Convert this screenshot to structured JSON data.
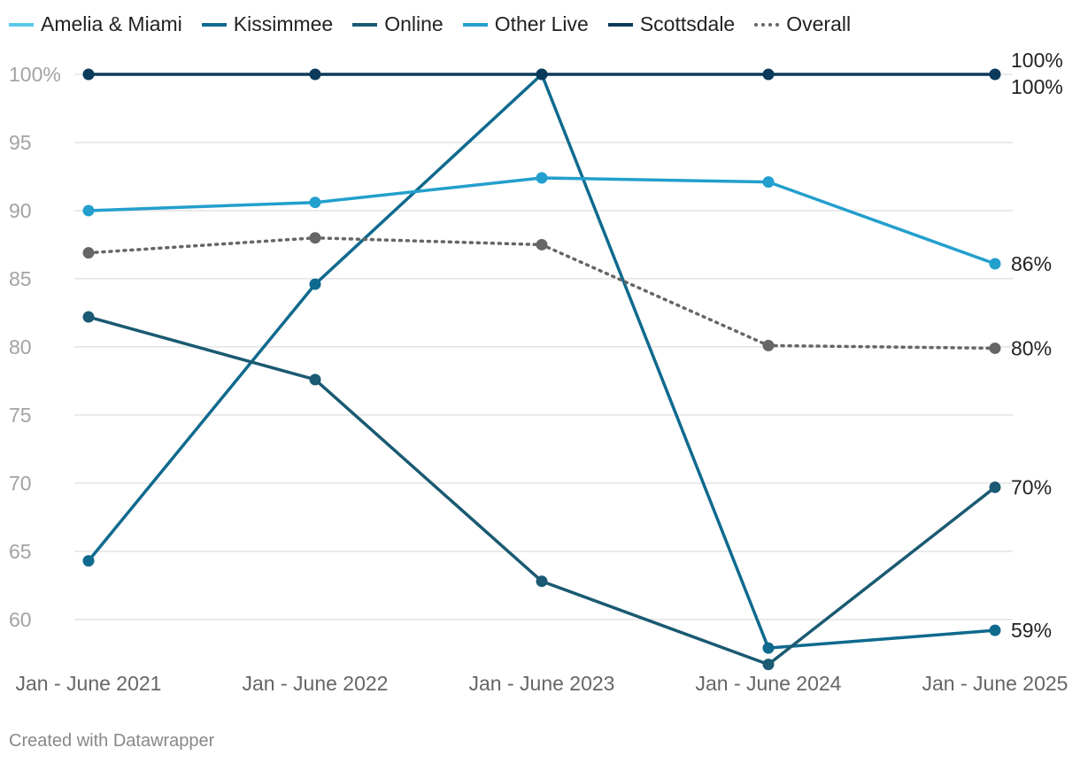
{
  "footer": {
    "credit": "Created with Datawrapper"
  },
  "chart_data": {
    "type": "line",
    "categories": [
      "Jan - June 2021",
      "Jan - June 2022",
      "Jan - June 2023",
      "Jan - June 2024",
      "Jan - June 2025"
    ],
    "ylim": [
      57,
      100
    ],
    "yticks": [
      60,
      65,
      70,
      75,
      80,
      85,
      90,
      95,
      100
    ],
    "ytick_labels": [
      "60",
      "65",
      "70",
      "75",
      "80",
      "85",
      "90",
      "95",
      "100%"
    ],
    "grid": true,
    "legend_position": "top-left",
    "series": [
      {
        "name": "Amelia & Miami",
        "color": "#5bc8ec",
        "style": "solid",
        "values": [
          null,
          null,
          null,
          null,
          null
        ],
        "end_label": ""
      },
      {
        "name": "Kissimmee",
        "color": "#0f6a8e",
        "style": "solid",
        "values": [
          64.3,
          84.6,
          100,
          57.9,
          59.2
        ],
        "end_label": "59%"
      },
      {
        "name": "Online",
        "color": "#1a5a72",
        "style": "solid",
        "values": [
          82.2,
          77.6,
          62.8,
          56.7,
          69.7
        ],
        "end_label": "70%"
      },
      {
        "name": "Other Live",
        "color": "#239fcd",
        "style": "solid",
        "values": [
          90.0,
          90.6,
          92.4,
          92.1,
          86.1
        ],
        "end_label": "86%"
      },
      {
        "name": "Scottsdale",
        "color": "#0b3a5b",
        "style": "solid",
        "values": [
          100,
          100,
          100,
          100,
          100
        ],
        "end_label": "100%"
      },
      {
        "name": "Overall",
        "color": "#666666",
        "style": "dotted",
        "values": [
          86.9,
          88.0,
          87.5,
          80.1,
          79.9
        ],
        "end_label": "80%"
      }
    ],
    "extra_end_labels": [
      "100%"
    ]
  }
}
